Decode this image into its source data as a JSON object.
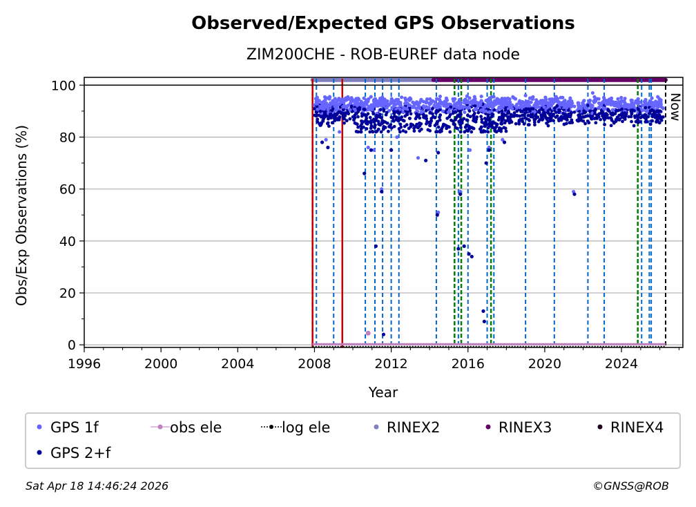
{
  "chart_data": {
    "type": "scatter",
    "title": "Observed/Expected GPS Observations",
    "subtitle": "ZIM200CHE - ROB-EUREF data node",
    "xlabel": "Year",
    "ylabel": "Obs/Exp Observations (%)",
    "xlim": [
      1996,
      2027.2
    ],
    "ylim": [
      -1,
      103
    ],
    "x_ticks": [
      1996,
      2000,
      2004,
      2008,
      2012,
      2016,
      2020,
      2024
    ],
    "y_ticks": [
      0,
      20,
      40,
      60,
      80,
      100
    ],
    "grid": "horizontal",
    "now_label": "Now",
    "now_year": 2026.3,
    "reference_line": 100,
    "rinex_bars": [
      {
        "name": "RINEX2",
        "from": 2007.9,
        "to": 2014.2,
        "color": "#8080c0"
      },
      {
        "name": "RINEX3",
        "from": 2014.2,
        "to": 2026.3,
        "color": "#660066"
      }
    ],
    "events": {
      "red_solid": [
        2007.9,
        2009.45
      ],
      "green_dashed": [
        2007.9,
        2015.3,
        2015.65,
        2017.2,
        2024.85
      ],
      "blue_dashed": [
        2008.1,
        2009.0,
        2010.65,
        2011.15,
        2011.55,
        2012.0,
        2012.4,
        2014.35,
        2015.5,
        2016.0,
        2017.0,
        2017.35,
        2019.0,
        2020.5,
        2022.25,
        2023.1,
        2025.05,
        2025.45,
        2025.55
      ],
      "black_dashed": [
        2026.3
      ]
    },
    "series": [
      {
        "name": "GPS 1f",
        "color": "#6666ff",
        "x": [
          2008.6,
          2009.3,
          2010.8,
          2011.1,
          2011.5,
          2012.3,
          2013.4,
          2014.45,
          2015.6,
          2016.1,
          2017.1,
          2017.8,
          2019.0,
          2021.5,
          2022.5
        ],
        "y": [
          79,
          82,
          76,
          75,
          60,
          80,
          72,
          51,
          59,
          75,
          76,
          79,
          96,
          59,
          97
        ]
      },
      {
        "name": "GPS 2+f",
        "color": "#000099",
        "x": [
          2008.4,
          2008.7,
          2010.6,
          2010.95,
          2011.2,
          2011.5,
          2011.6,
          2012.0,
          2013.8,
          2014.4,
          2014.45,
          2015.5,
          2015.6,
          2015.8,
          2016.05,
          2016.2,
          2016.8,
          2016.85,
          2016.95,
          2017.1,
          2017.9,
          2021.55,
          2025.9
        ],
        "y": [
          78,
          76,
          66,
          75,
          38,
          59,
          4,
          75,
          71,
          50,
          74,
          37,
          58,
          38,
          35,
          34,
          13,
          9,
          70,
          75,
          78,
          58,
          86
        ]
      },
      {
        "name": "obs ele",
        "color": "#c080c0",
        "x": [
          2010.8
        ],
        "y": [
          4.5
        ]
      },
      {
        "name": "log ele",
        "color": "#000000"
      },
      {
        "name": "RINEX2",
        "color": "#8080c0"
      },
      {
        "name": "RINEX3",
        "color": "#660066"
      },
      {
        "name": "RINEX4",
        "color": "#200020"
      }
    ],
    "dense_band": {
      "from": 2008.0,
      "to": 2026.2,
      "low": 85,
      "high": 96
    }
  },
  "footer": {
    "timestamp": "Sat Apr 18 14:46:24 2026",
    "credit": "©GNSS@ROB"
  }
}
